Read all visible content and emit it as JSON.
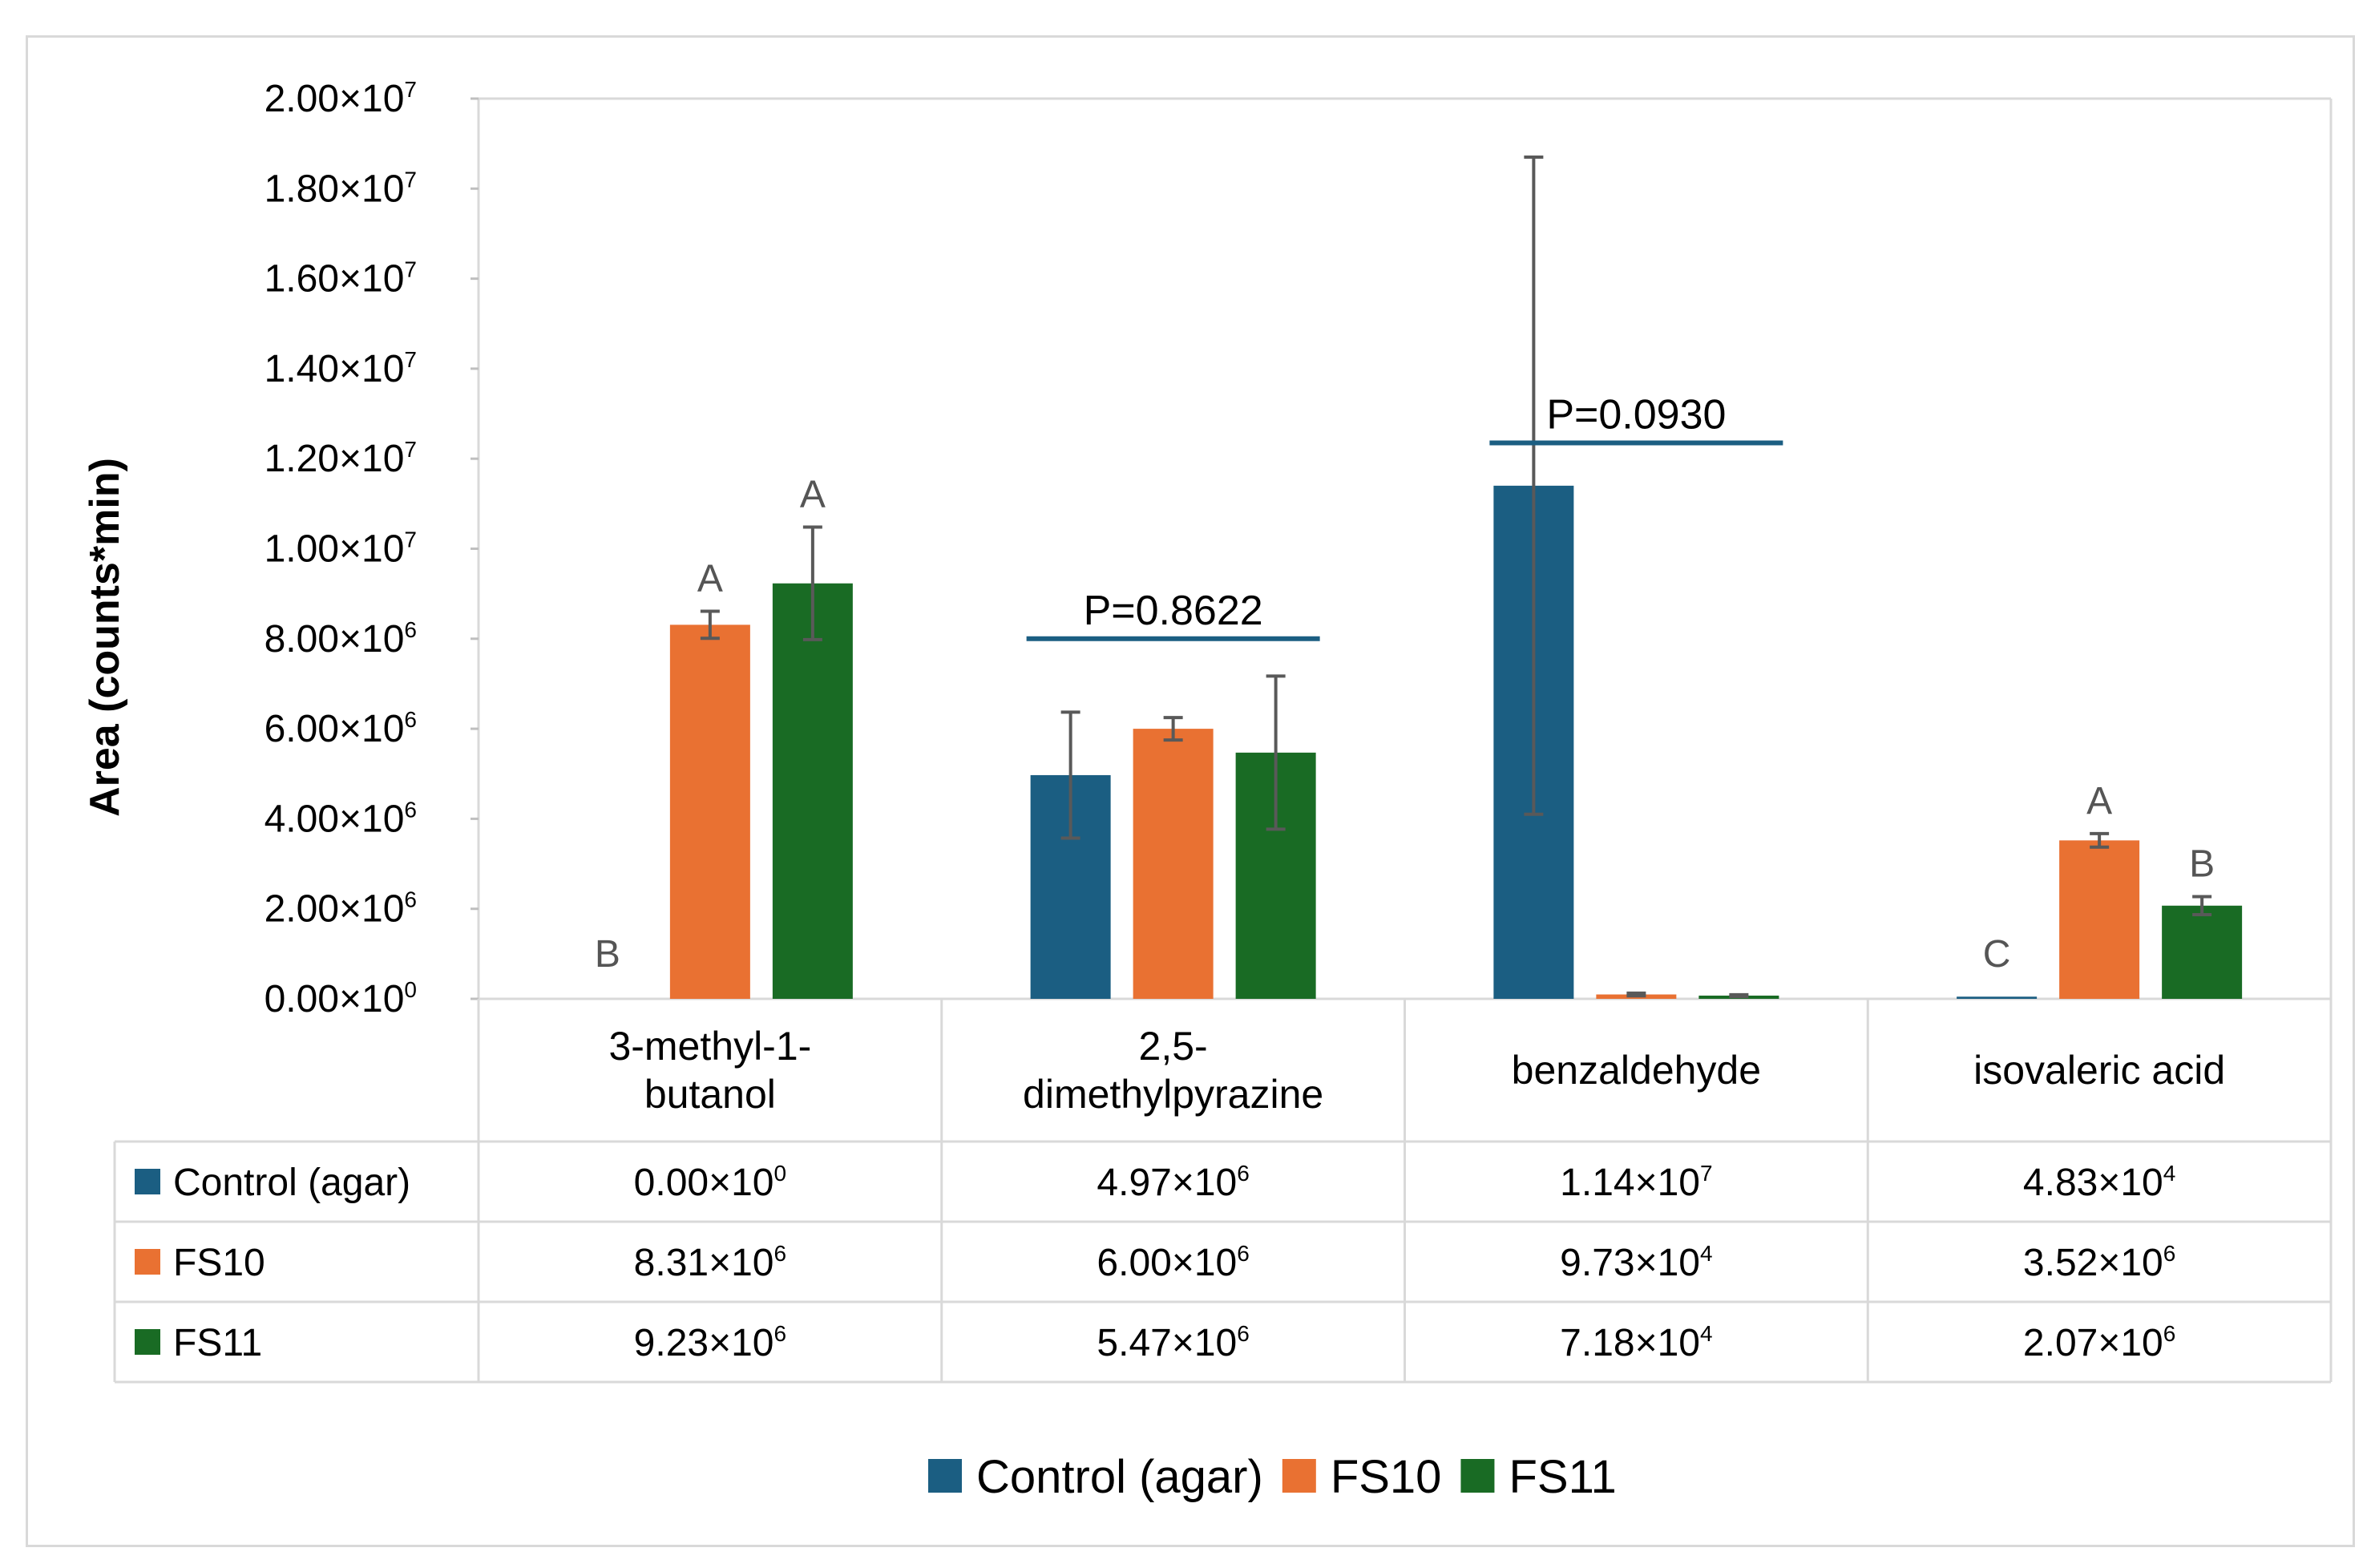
{
  "chart_data": {
    "type": "bar",
    "ylabel": "Area (counts*min)",
    "ylim": [
      0,
      20000000
    ],
    "y_ticks": [
      {
        "value": 0,
        "mant": "0.00",
        "exp": "0"
      },
      {
        "value": 2000000,
        "mant": "2.00",
        "exp": "6"
      },
      {
        "value": 4000000,
        "mant": "4.00",
        "exp": "6"
      },
      {
        "value": 6000000,
        "mant": "6.00",
        "exp": "6"
      },
      {
        "value": 8000000,
        "mant": "8.00",
        "exp": "6"
      },
      {
        "value": 10000000,
        "mant": "1.00",
        "exp": "7"
      },
      {
        "value": 12000000,
        "mant": "1.20",
        "exp": "7"
      },
      {
        "value": 14000000,
        "mant": "1.40",
        "exp": "7"
      },
      {
        "value": 16000000,
        "mant": "1.60",
        "exp": "7"
      },
      {
        "value": 18000000,
        "mant": "1.80",
        "exp": "7"
      },
      {
        "value": 20000000,
        "mant": "2.00",
        "exp": "7"
      }
    ],
    "categories": [
      [
        "3-methyl-1-",
        "butanol"
      ],
      [
        "2,5-",
        "dimethylpyrazine"
      ],
      [
        "benzaldehyde"
      ],
      [
        "isovaleric acid"
      ]
    ],
    "series": [
      {
        "name": "Control (agar)",
        "color": "#1b5e82",
        "values": [
          0,
          4970000,
          11400000,
          48300
        ],
        "errors": [
          0,
          1400000,
          7300000,
          0
        ],
        "labels": [
          [
            "0.00",
            "0"
          ],
          [
            "4.97",
            "6"
          ],
          [
            "1.14",
            "7"
          ],
          [
            "4.83",
            "4"
          ]
        ]
      },
      {
        "name": "FS10",
        "color": "#e97132",
        "values": [
          8310000,
          6000000,
          97300,
          3520000
        ],
        "errors": [
          300000,
          250000,
          30000,
          150000
        ],
        "labels": [
          [
            "8.31",
            "6"
          ],
          [
            "6.00",
            "6"
          ],
          [
            "9.73",
            "4"
          ],
          [
            "3.52",
            "6"
          ]
        ]
      },
      {
        "name": "FS11",
        "color": "#196b24",
        "values": [
          9230000,
          5470000,
          71800,
          2070000
        ],
        "errors": [
          1250000,
          1700000,
          20000,
          200000
        ],
        "labels": [
          [
            "9.23",
            "6"
          ],
          [
            "5.47",
            "6"
          ],
          [
            "7.18",
            "4"
          ],
          [
            "2.07",
            "6"
          ]
        ]
      }
    ],
    "significance_letters": [
      {
        "category": 0,
        "series": 0,
        "text": "B"
      },
      {
        "category": 0,
        "series": 1,
        "text": "A"
      },
      {
        "category": 0,
        "series": 2,
        "text": "A"
      },
      {
        "category": 3,
        "series": 0,
        "text": "C"
      },
      {
        "category": 3,
        "series": 1,
        "text": "A"
      },
      {
        "category": 3,
        "series": 2,
        "text": "B"
      }
    ],
    "p_values": [
      {
        "category": 1,
        "text": "P=0.8622",
        "level": 8000000
      },
      {
        "category": 2,
        "text": "P=0.0930",
        "level": 12350000
      }
    ],
    "times": "×10"
  }
}
